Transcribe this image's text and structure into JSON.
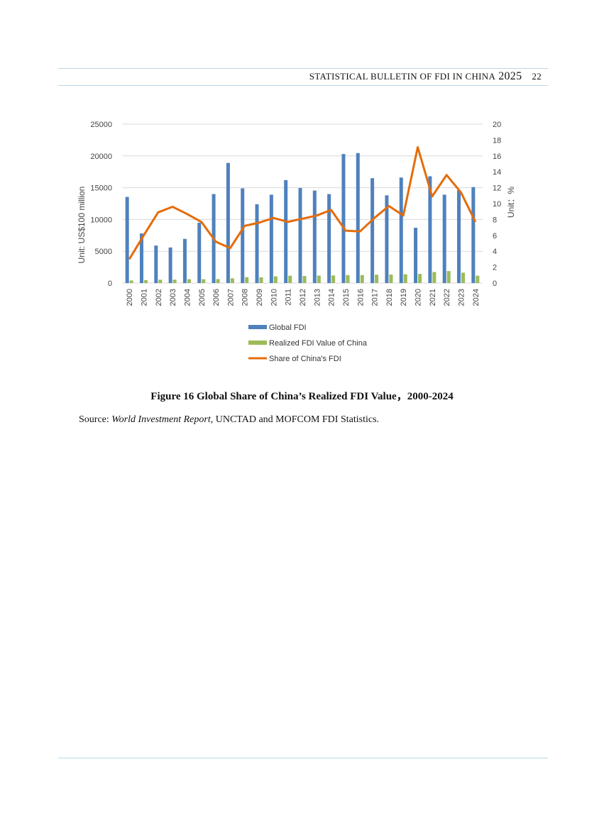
{
  "header": {
    "title": "STATISTICAL BULLETIN OF FDI IN CHINA",
    "year": "2025",
    "page_number": "22"
  },
  "figure": {
    "caption": "Figure 16    Global Share of China’s Realized FDI Value，2000-2024",
    "source_label": "Source: ",
    "source_italic": "World Investment Report",
    "source_rest": ", UNCTAD and MOFCOM FDI Statistics."
  },
  "chart_data": {
    "type": "bar",
    "x": [
      "2000",
      "2001",
      "2002",
      "2003",
      "2004",
      "2005",
      "2006",
      "2007",
      "2008",
      "2009",
      "2010",
      "2011",
      "2012",
      "2013",
      "2014",
      "2015",
      "2016",
      "2017",
      "2018",
      "2019",
      "2020",
      "2021",
      "2022",
      "2023",
      "2024"
    ],
    "series": [
      {
        "name": "Global FDI",
        "type": "bar",
        "axis": "left",
        "color": "#4f81bd",
        "values": [
          13550,
          7800,
          5900,
          5600,
          6950,
          9500,
          14000,
          18900,
          14900,
          12400,
          13900,
          16200,
          14950,
          14550,
          14000,
          20300,
          20450,
          16500,
          13800,
          16600,
          8700,
          16800,
          13900,
          14600,
          15100
        ]
      },
      {
        "name": "Realized FDI Value of China",
        "type": "bar",
        "axis": "left",
        "color": "#9bbb59",
        "values": [
          407,
          469,
          527,
          535,
          606,
          603,
          630,
          748,
          924,
          900,
          1057,
          1160,
          1117,
          1176,
          1196,
          1263,
          1260,
          1310,
          1350,
          1381,
          1444,
          1735,
          1891,
          1633,
          1162
        ]
      },
      {
        "name": "Share of China's FDI",
        "type": "line",
        "axis": "right",
        "color": "#e46c0a",
        "values": [
          3.0,
          6.0,
          8.9,
          9.6,
          8.7,
          7.7,
          5.2,
          4.4,
          7.2,
          7.6,
          8.2,
          7.7,
          8.1,
          8.5,
          9.2,
          6.6,
          6.5,
          8.2,
          9.7,
          8.5,
          17.1,
          10.9,
          13.6,
          11.4,
          7.7
        ]
      }
    ],
    "ylabel": "Unit: US$100 million",
    "ylabel_right": "Unit：%",
    "ylim": [
      0,
      25000
    ],
    "yticks": [
      "0",
      "5000",
      "10000",
      "15000",
      "20000",
      "25000"
    ],
    "ylim_right": [
      0,
      20
    ],
    "yticks_right": [
      "0",
      "2",
      "4",
      "6",
      "8",
      "10",
      "12",
      "14",
      "16",
      "18",
      "20"
    ],
    "grid": true,
    "legend_position": "bottom"
  }
}
